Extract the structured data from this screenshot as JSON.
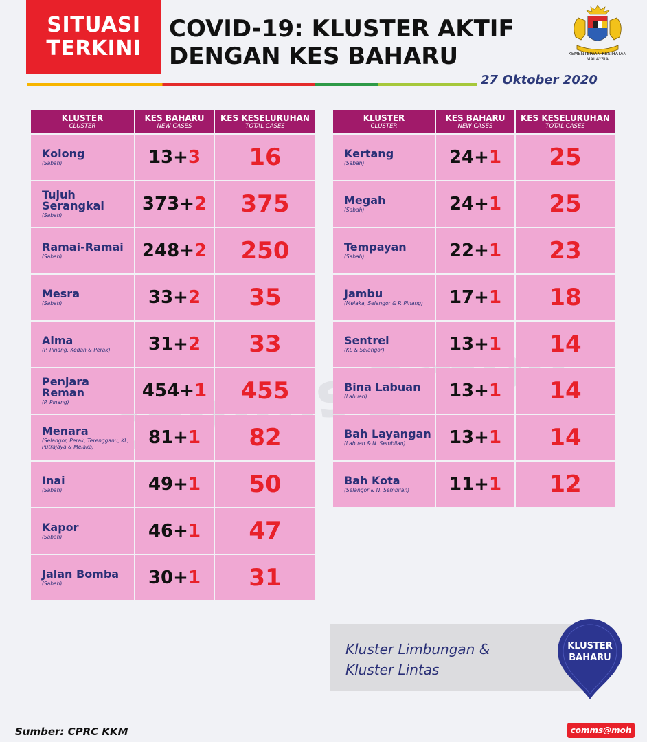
{
  "header": {
    "badge_line1": "SITUASI",
    "badge_line2": "TERKINI",
    "title_line1": "COVID-19: KLUSTER AKTIF",
    "title_line2": "DENGAN KES BAHARU",
    "ministry_line1": "KEMENTERIAN KESIHATAN",
    "ministry_line2": "MALAYSIA",
    "date": "27  Oktober 2020"
  },
  "columns": {
    "cluster": "KLUSTER",
    "cluster_en": "CLUSTER",
    "new": "KES BAHARU",
    "new_en": "NEW CASES",
    "total": "KES KESELURUHAN",
    "total_en": "TOTAL CASES"
  },
  "left_rows": [
    {
      "name": "Kolong",
      "region": "(Sabah)",
      "base": "13+",
      "inc": "3",
      "total": "16"
    },
    {
      "name": "Tujuh Serangkai",
      "region": "(Sabah)",
      "base": "373+",
      "inc": "2",
      "total": "375"
    },
    {
      "name": "Ramai-Ramai",
      "region": "(Sabah)",
      "base": "248+",
      "inc": "2",
      "total": "250"
    },
    {
      "name": "Mesra",
      "region": "(Sabah)",
      "base": "33+",
      "inc": "2",
      "total": "35"
    },
    {
      "name": "Alma",
      "region": "(P. Pinang, Kedah & Perak)",
      "base": "31+",
      "inc": "2",
      "total": "33"
    },
    {
      "name": "Penjara Reman",
      "region": "(P. Pinang)",
      "base": "454+",
      "inc": "1",
      "total": "455"
    },
    {
      "name": "Menara",
      "region": "(Selangor, Perak, Terengganu, KL, Putrajaya & Melaka)",
      "base": "81+",
      "inc": "1",
      "total": "82"
    },
    {
      "name": "Inai",
      "region": "(Sabah)",
      "base": "49+",
      "inc": "1",
      "total": "50"
    },
    {
      "name": "Kapor",
      "region": "(Sabah)",
      "base": "46+",
      "inc": "1",
      "total": "47"
    },
    {
      "name": "Jalan Bomba",
      "region": "(Sabah)",
      "base": "30+",
      "inc": "1",
      "total": "31"
    }
  ],
  "right_rows": [
    {
      "name": "Kertang",
      "region": "(Sabah)",
      "base": "24+",
      "inc": "1",
      "total": "25"
    },
    {
      "name": "Megah",
      "region": "(Sabah)",
      "base": "24+",
      "inc": "1",
      "total": "25"
    },
    {
      "name": "Tempayan",
      "region": "(Sabah)",
      "base": "22+",
      "inc": "1",
      "total": "23"
    },
    {
      "name": "Jambu",
      "region": "(Melaka, Selangor & P. Pinang)",
      "base": "17+",
      "inc": "1",
      "total": "18"
    },
    {
      "name": "Sentrel",
      "region": "(KL & Selangor)",
      "base": "13+",
      "inc": "1",
      "total": "14"
    },
    {
      "name": "Bina Labuan",
      "region": "(Labuan)",
      "base": "13+",
      "inc": "1",
      "total": "14"
    },
    {
      "name": "Bah Layangan",
      "region": "(Labuan & N. Sembilan)",
      "base": "13+",
      "inc": "1",
      "total": "14"
    },
    {
      "name": "Bah Kota",
      "region": "(Selangor & N. Sembilan)",
      "base": "11+",
      "inc": "1",
      "total": "12"
    }
  ],
  "new_cluster": {
    "line1": "Kluster Limbungan &",
    "line2": "Kluster Lintas",
    "pin_line1": "KLUSTER",
    "pin_line2": "BAHARU"
  },
  "footer": {
    "source": "Sumber: CPRC KKM",
    "watermark": "comms@moh",
    "logo": "comms@moh"
  },
  "colors": {
    "badge": "#e8212a",
    "header_cell": "#a11a6a",
    "body_cell": "#f0a8d3",
    "name_text": "#2a3077",
    "increment": "#e8212a",
    "pin": "#2c3590"
  },
  "icons": {
    "crest": "malaysia-coat-of-arms-icon",
    "pin": "location-pin-icon"
  }
}
